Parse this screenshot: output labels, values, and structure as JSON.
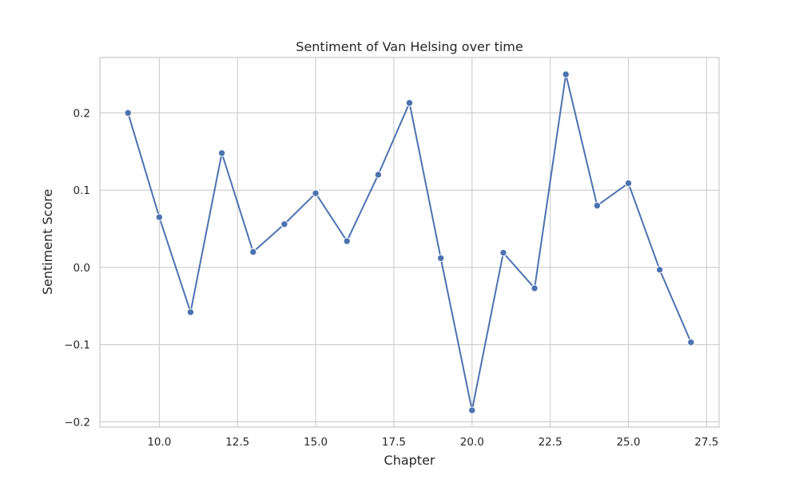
{
  "chart_data": {
    "type": "line",
    "title": "Sentiment of Van Helsing over time",
    "xlabel": "Chapter",
    "ylabel": "Sentiment Score",
    "x": [
      9,
      10,
      11,
      12,
      13,
      14,
      15,
      16,
      17,
      18,
      19,
      20,
      21,
      22,
      23,
      24,
      25,
      26,
      27
    ],
    "series": [
      {
        "values": [
          0.2,
          0.065,
          -0.058,
          0.148,
          0.02,
          0.056,
          0.096,
          0.034,
          0.12,
          0.213,
          0.012,
          -0.185,
          0.019,
          -0.027,
          0.25,
          0.08,
          0.109,
          -0.003,
          -0.097
        ],
        "color": "#4c72b0",
        "marker": "circle"
      }
    ],
    "xlim": [
      8.1,
      27.9
    ],
    "ylim": [
      -0.2068,
      0.2718
    ],
    "xticks": [
      10.0,
      12.5,
      15.0,
      17.5,
      20.0,
      22.5,
      25.0,
      27.5
    ],
    "xtick_labels": [
      "10.0",
      "12.5",
      "15.0",
      "17.5",
      "20.0",
      "22.5",
      "25.0",
      "27.5"
    ],
    "yticks": [
      -0.2,
      -0.1,
      0.0,
      0.1,
      0.2
    ],
    "ytick_labels": [
      "−0.2",
      "−0.1",
      "0.0",
      "0.1",
      "0.2"
    ],
    "grid": true,
    "legend": "none",
    "style": {
      "background": "#ffffff",
      "grid_color": "#cccccc",
      "text_color": "#262626"
    }
  }
}
